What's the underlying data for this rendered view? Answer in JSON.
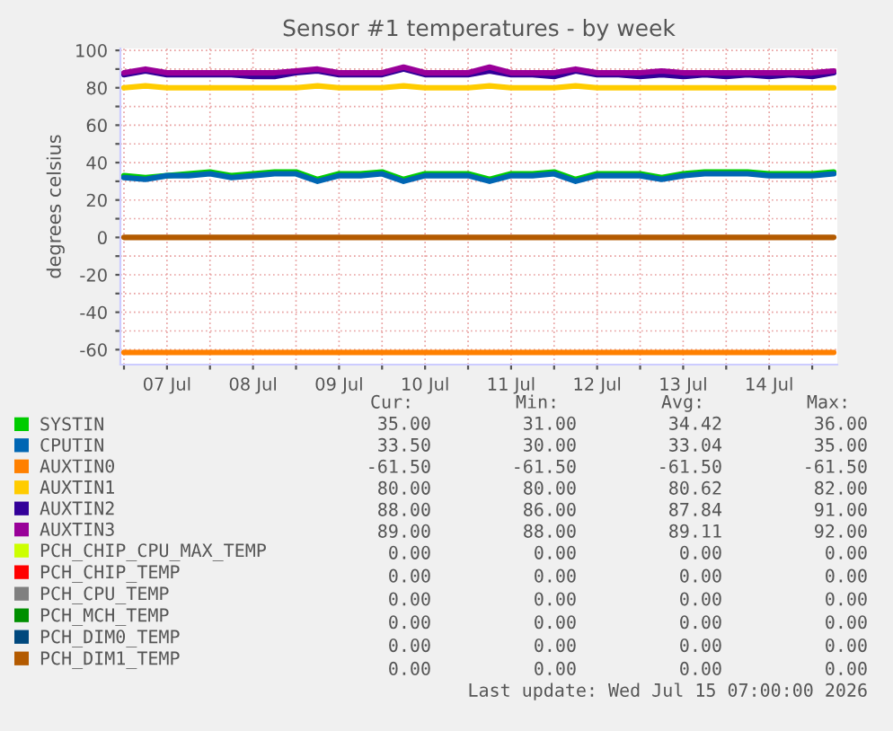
{
  "chart_data": {
    "type": "line",
    "title": "Sensor #1 temperatures - by week",
    "ylabel": "degrees celsius",
    "x": [
      "2026-07-07T00:00",
      "2026-07-07T06:00",
      "2026-07-07T12:00",
      "2026-07-07T18:00",
      "2026-07-08T00:00",
      "2026-07-08T06:00",
      "2026-07-08T12:00",
      "2026-07-08T18:00",
      "2026-07-09T00:00",
      "2026-07-09T06:00",
      "2026-07-09T12:00",
      "2026-07-09T18:00",
      "2026-07-10T00:00",
      "2026-07-10T06:00",
      "2026-07-10T12:00",
      "2026-07-10T18:00",
      "2026-07-11T00:00",
      "2026-07-11T06:00",
      "2026-07-11T12:00",
      "2026-07-11T18:00",
      "2026-07-12T00:00",
      "2026-07-12T06:00",
      "2026-07-12T12:00",
      "2026-07-12T18:00",
      "2026-07-13T00:00",
      "2026-07-13T06:00",
      "2026-07-13T12:00",
      "2026-07-13T18:00",
      "2026-07-14T00:00",
      "2026-07-14T06:00",
      "2026-07-14T12:00",
      "2026-07-14T18:00",
      "2026-07-15T00:00",
      "2026-07-15T06:00"
    ],
    "series": [
      {
        "name": "SYSTIN",
        "color": "#00cc00",
        "values": [
          33,
          32,
          33,
          34,
          35,
          33,
          34,
          35,
          35,
          31,
          34,
          34,
          35,
          31,
          34,
          34,
          34,
          31,
          34,
          34,
          35,
          31,
          34,
          34,
          34,
          32,
          34,
          35,
          35,
          35,
          34,
          34,
          34,
          35
        ]
      },
      {
        "name": "CPUTIN",
        "color": "#0066b3",
        "values": [
          32,
          31,
          33,
          33,
          34,
          32,
          33,
          34,
          34,
          30,
          33,
          33,
          34,
          30,
          33,
          33,
          33,
          30,
          33,
          33,
          34,
          30,
          33,
          33,
          33,
          31,
          33,
          34,
          34,
          34,
          33,
          33,
          33,
          34
        ]
      },
      {
        "name": "AUXTIN0",
        "color": "#ff8000",
        "values": [
          -61.5,
          -61.5,
          -61.5,
          -61.5,
          -61.5,
          -61.5,
          -61.5,
          -61.5,
          -61.5,
          -61.5,
          -61.5,
          -61.5,
          -61.5,
          -61.5,
          -61.5,
          -61.5,
          -61.5,
          -61.5,
          -61.5,
          -61.5,
          -61.5,
          -61.5,
          -61.5,
          -61.5,
          -61.5,
          -61.5,
          -61.5,
          -61.5,
          -61.5,
          -61.5,
          -61.5,
          -61.5,
          -61.5,
          -61.5
        ]
      },
      {
        "name": "AUXTIN1",
        "color": "#ffcc00",
        "values": [
          80,
          81,
          80,
          80,
          80,
          80,
          80,
          80,
          80,
          81,
          80,
          80,
          80,
          81,
          80,
          80,
          80,
          81,
          80,
          80,
          80,
          81,
          80,
          80,
          80,
          80,
          80,
          80,
          80,
          80,
          80,
          80,
          80,
          80
        ]
      },
      {
        "name": "AUXTIN2",
        "color": "#330099",
        "values": [
          87,
          89,
          87,
          87,
          87,
          87,
          86,
          86,
          88,
          89,
          87,
          87,
          87,
          90,
          87,
          87,
          87,
          89,
          87,
          87,
          86,
          89,
          87,
          87,
          86,
          87,
          86,
          87,
          86,
          87,
          86,
          87,
          86,
          88
        ]
      },
      {
        "name": "AUXTIN3",
        "color": "#990099",
        "values": [
          88,
          90,
          88,
          88,
          88,
          88,
          88,
          88,
          89,
          90,
          88,
          88,
          88,
          91,
          88,
          88,
          88,
          91,
          88,
          88,
          88,
          90,
          88,
          88,
          88,
          89,
          88,
          88,
          88,
          88,
          88,
          88,
          88,
          89
        ]
      },
      {
        "name": "PCH_CHIP_CPU_MAX_TEMP",
        "color": "#ccff00",
        "values": [
          null,
          null,
          null,
          null,
          null,
          null,
          null,
          null,
          null,
          null,
          null,
          null,
          null,
          null,
          null,
          null,
          null,
          null,
          null,
          null,
          null,
          null,
          null,
          null,
          null,
          null,
          null,
          null,
          null,
          null,
          null,
          null,
          null,
          null
        ]
      },
      {
        "name": "PCH_CHIP_TEMP",
        "color": "#ff0000",
        "values": [
          null,
          null,
          null,
          null,
          null,
          null,
          null,
          null,
          null,
          null,
          null,
          null,
          null,
          null,
          null,
          null,
          null,
          null,
          null,
          null,
          null,
          null,
          null,
          null,
          null,
          null,
          null,
          null,
          null,
          null,
          null,
          null,
          null,
          null
        ]
      },
      {
        "name": "PCH_CPU_TEMP",
        "color": "#808080",
        "values": [
          null,
          null,
          null,
          null,
          null,
          null,
          null,
          null,
          null,
          null,
          null,
          null,
          null,
          null,
          null,
          null,
          null,
          null,
          null,
          null,
          null,
          null,
          null,
          null,
          null,
          null,
          null,
          null,
          null,
          null,
          null,
          null,
          null,
          null
        ]
      },
      {
        "name": "PCH_MCH_TEMP",
        "color": "#008f00",
        "values": [
          null,
          null,
          null,
          null,
          null,
          null,
          null,
          null,
          null,
          null,
          null,
          null,
          null,
          null,
          null,
          null,
          null,
          null,
          null,
          null,
          null,
          null,
          null,
          null,
          null,
          null,
          null,
          null,
          null,
          null,
          null,
          null,
          null,
          null
        ]
      },
      {
        "name": "PCH_DIM0_TEMP",
        "color": "#00487d",
        "values": [
          null,
          null,
          null,
          null,
          null,
          null,
          null,
          null,
          null,
          null,
          null,
          null,
          null,
          null,
          null,
          null,
          null,
          null,
          null,
          null,
          null,
          null,
          null,
          null,
          null,
          null,
          null,
          null,
          null,
          null,
          null,
          null,
          null,
          null
        ]
      },
      {
        "name": "PCH_DIM1_TEMP",
        "color": "#b35a00",
        "values": [
          0,
          0,
          0,
          0,
          0,
          0,
          0,
          0,
          0,
          0,
          0,
          0,
          0,
          0,
          0,
          0,
          0,
          0,
          0,
          0,
          0,
          0,
          0,
          0,
          0,
          0,
          0,
          0,
          0,
          0,
          0,
          0,
          0,
          0
        ]
      }
    ],
    "xlim": [
      "2026-07-06T23:00",
      "2026-07-15T07:00"
    ],
    "xticks": [
      {
        "value": "2026-07-07T00:00",
        "label": null
      },
      {
        "value": "2026-07-07T12:00",
        "label": "07 Jul"
      },
      {
        "value": "2026-07-08T00:00",
        "label": null
      },
      {
        "value": "2026-07-08T12:00",
        "label": "08 Jul"
      },
      {
        "value": "2026-07-09T00:00",
        "label": null
      },
      {
        "value": "2026-07-09T12:00",
        "label": "09 Jul"
      },
      {
        "value": "2026-07-10T00:00",
        "label": null
      },
      {
        "value": "2026-07-10T12:00",
        "label": "10 Jul"
      },
      {
        "value": "2026-07-11T00:00",
        "label": null
      },
      {
        "value": "2026-07-11T12:00",
        "label": "11 Jul"
      },
      {
        "value": "2026-07-12T00:00",
        "label": null
      },
      {
        "value": "2026-07-12T12:00",
        "label": "12 Jul"
      },
      {
        "value": "2026-07-13T00:00",
        "label": null
      },
      {
        "value": "2026-07-13T12:00",
        "label": "13 Jul"
      },
      {
        "value": "2026-07-14T00:00",
        "label": null
      },
      {
        "value": "2026-07-14T12:00",
        "label": "14 Jul"
      },
      {
        "value": "2026-07-15T00:00",
        "label": null
      }
    ],
    "ylim": [
      -68,
      101
    ],
    "yticks": [
      -60,
      {
        "value": -50,
        "label": null
      },
      -40,
      {
        "value": -30,
        "label": null
      },
      -20,
      {
        "value": -10,
        "label": null
      },
      0,
      {
        "value": 10,
        "label": null
      },
      20,
      {
        "value": 30,
        "label": null
      },
      40,
      {
        "value": 50,
        "label": null
      },
      60,
      {
        "value": 70,
        "label": null
      },
      80,
      {
        "value": 90,
        "label": null
      },
      100
    ],
    "grid": true,
    "legend": "bottom",
    "marker": "none",
    "line_style": "solid",
    "annotations": [
      "Cur:",
      "Min:",
      "Avg:",
      "Max:",
      "35.00",
      "31.00",
      "34.42",
      "36.00",
      "33.50",
      "30.00",
      "33.04",
      "35.00",
      "-61.50",
      "-61.50",
      "-61.50",
      "-61.50",
      "80.00",
      "80.00",
      "80.62",
      "82.00",
      "88.00",
      "86.00",
      "87.84",
      "91.00",
      "89.00",
      "88.00",
      "89.11",
      "92.00",
      "0.00",
      "0.00",
      "0.00",
      "0.00",
      "0.00",
      "0.00",
      "0.00",
      "0.00",
      "0.00",
      "0.00",
      "0.00",
      "0.00",
      "0.00",
      "0.00",
      "0.00",
      "0.00",
      "0.00",
      "0.00",
      "0.00",
      "0.00",
      "0.00",
      "0.00",
      "0.00",
      "0.00",
      "Last update: Wed Jul 15 07:00:00 2026"
    ]
  }
}
